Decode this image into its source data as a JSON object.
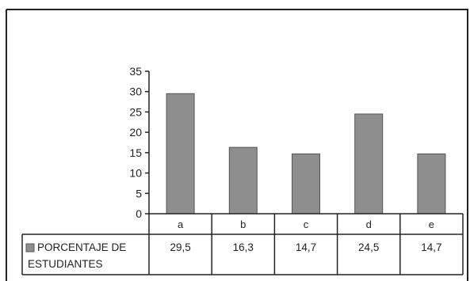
{
  "chart_data": {
    "type": "bar",
    "categories": [
      "a",
      "b",
      "c",
      "d",
      "e"
    ],
    "series": [
      {
        "name": "PORCENTAJE DE ESTUDIANTES",
        "name_lines": [
          "PORCENTAJE DE",
          "ESTUDIANTES"
        ],
        "values": [
          29.5,
          16.3,
          14.7,
          24.5,
          14.7
        ],
        "value_labels": [
          "29,5",
          "16,3",
          "14,7",
          "24,5",
          "14,7"
        ]
      }
    ],
    "ylim": [
      0,
      35
    ],
    "yticks": [
      0,
      5,
      10,
      15,
      20,
      25,
      30,
      35
    ],
    "title": "",
    "xlabel": "",
    "ylabel": "",
    "grid": false,
    "legend": "data-table",
    "colors": {
      "bar": "#8e8e8e",
      "bar_edge": "#555555",
      "frame": "#222222"
    }
  }
}
